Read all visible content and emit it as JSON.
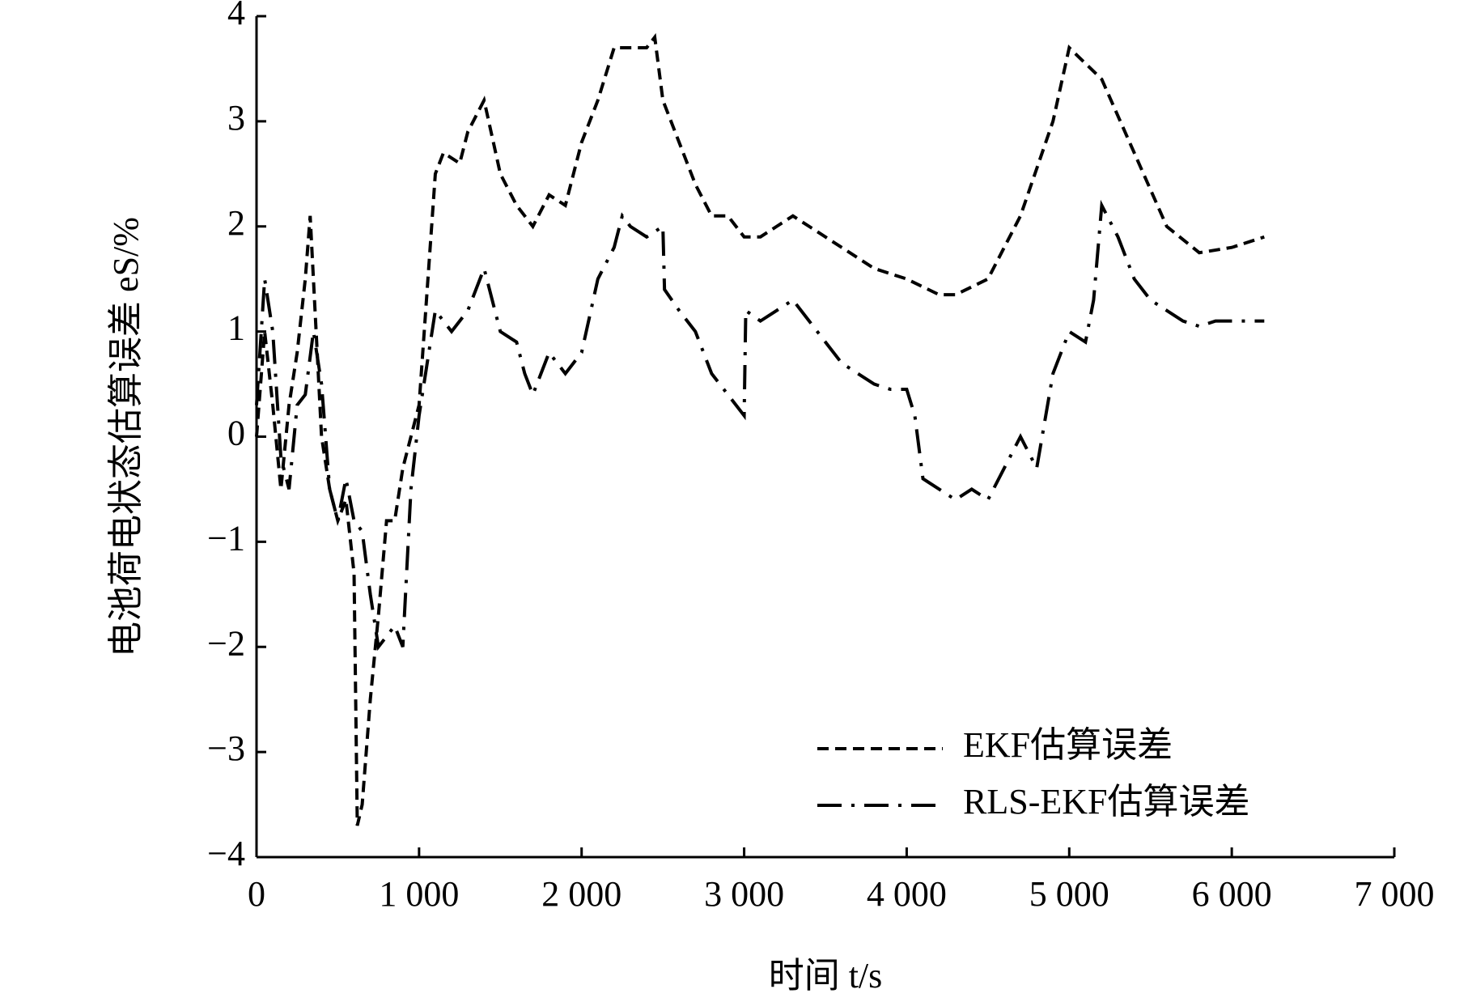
{
  "chart_data": {
    "type": "line",
    "xlabel": "时间 t/s",
    "ylabel": "电池荷电状态估算误差 eS/%",
    "xlim": [
      0,
      7000
    ],
    "xticks": [
      0,
      {
        "value": 1000,
        "label": "1 000"
      },
      {
        "value": 2000,
        "label": "2 000"
      },
      {
        "value": 3000,
        "label": "3 000"
      },
      {
        "value": 4000,
        "label": "4 000"
      },
      {
        "value": 5000,
        "label": "5 000"
      },
      {
        "value": 6000,
        "label": "6 000"
      },
      {
        "value": 7000,
        "label": "7 000"
      }
    ],
    "ylim": [
      -4,
      4
    ],
    "yticks": [
      {
        "value": -4,
        "label": "−4"
      },
      {
        "value": -3,
        "label": "−3"
      },
      {
        "value": -2,
        "label": "−2"
      },
      {
        "value": -1,
        "label": "−1"
      },
      0,
      1,
      2,
      3,
      4
    ],
    "legend": "lower right",
    "series": [
      {
        "name": "EKF估算误差",
        "color": "#000000",
        "line_style": "dashed",
        "x": [
          0,
          50,
          100,
          150,
          200,
          250,
          300,
          330,
          350,
          400,
          450,
          500,
          550,
          600,
          620,
          650,
          700,
          750,
          800,
          850,
          900,
          950,
          1000,
          1100,
          1150,
          1250,
          1300,
          1400,
          1500,
          1600,
          1700,
          1800,
          1900,
          2000,
          2100,
          2200,
          2300,
          2400,
          2450,
          2500,
          2600,
          2700,
          2800,
          2900,
          3000,
          3100,
          3200,
          3300,
          3400,
          3600,
          3800,
          4000,
          4200,
          4300,
          4500,
          4700,
          4900,
          5000,
          5200,
          5400,
          5600,
          5800,
          6000,
          6200
        ],
        "values": [
          0,
          1.0,
          0.3,
          -0.5,
          0.3,
          0.8,
          1.5,
          2.1,
          1.5,
          0,
          -0.5,
          -0.8,
          -0.6,
          -1.3,
          -3.7,
          -3.5,
          -2.5,
          -1.7,
          -0.8,
          -0.8,
          -0.3,
          0,
          0.3,
          2.5,
          2.7,
          2.6,
          2.9,
          3.2,
          2.5,
          2.2,
          2.0,
          2.3,
          2.2,
          2.8,
          3.2,
          3.7,
          3.7,
          3.7,
          3.8,
          3.2,
          2.8,
          2.4,
          2.1,
          2.1,
          1.9,
          1.9,
          2.0,
          2.1,
          2.0,
          1.8,
          1.6,
          1.5,
          1.35,
          1.35,
          1.5,
          2.1,
          3.0,
          3.7,
          3.4,
          2.7,
          2.0,
          1.75,
          1.8,
          1.9
        ]
      },
      {
        "name": "RLS-EKF估算误差",
        "color": "#000000",
        "line_style": "dashdot",
        "x": [
          0,
          50,
          100,
          150,
          200,
          250,
          300,
          350,
          400,
          450,
          500,
          550,
          600,
          650,
          700,
          750,
          800,
          850,
          900,
          950,
          1000,
          1100,
          1200,
          1300,
          1400,
          1500,
          1600,
          1650,
          1700,
          1800,
          1900,
          2000,
          2100,
          2200,
          2250,
          2300,
          2400,
          2500,
          2510,
          2600,
          2700,
          2800,
          2900,
          3000,
          3010,
          3100,
          3200,
          3300,
          3400,
          3500,
          3600,
          3700,
          3800,
          3900,
          4000,
          4050,
          4100,
          4200,
          4300,
          4400,
          4500,
          4600,
          4700,
          4800,
          4900,
          5000,
          5100,
          5150,
          5200,
          5300,
          5400,
          5500,
          5600,
          5700,
          5800,
          5900,
          6000,
          6100,
          6200
        ],
        "values": [
          0.3,
          1.5,
          1.0,
          -0.2,
          -0.5,
          0.3,
          0.4,
          1.0,
          0.5,
          -0.5,
          -0.8,
          -0.4,
          -0.8,
          -0.9,
          -1.5,
          -2.0,
          -1.9,
          -1.8,
          -2.0,
          -0.5,
          0.2,
          1.2,
          1.0,
          1.2,
          1.6,
          1.0,
          0.9,
          0.6,
          0.4,
          0.8,
          0.6,
          0.8,
          1.5,
          1.8,
          2.1,
          2.0,
          1.9,
          2.0,
          1.4,
          1.2,
          1.0,
          0.6,
          0.4,
          0.2,
          1.2,
          1.1,
          1.2,
          1.3,
          1.1,
          0.9,
          0.7,
          0.6,
          0.5,
          0.45,
          0.45,
          0.2,
          -0.4,
          -0.5,
          -0.6,
          -0.5,
          -0.6,
          -0.3,
          0,
          -0.3,
          0.6,
          1.0,
          0.9,
          1.3,
          2.2,
          1.9,
          1.5,
          1.3,
          1.2,
          1.1,
          1.05,
          1.1,
          1.1,
          1.1,
          1.1
        ]
      }
    ]
  }
}
